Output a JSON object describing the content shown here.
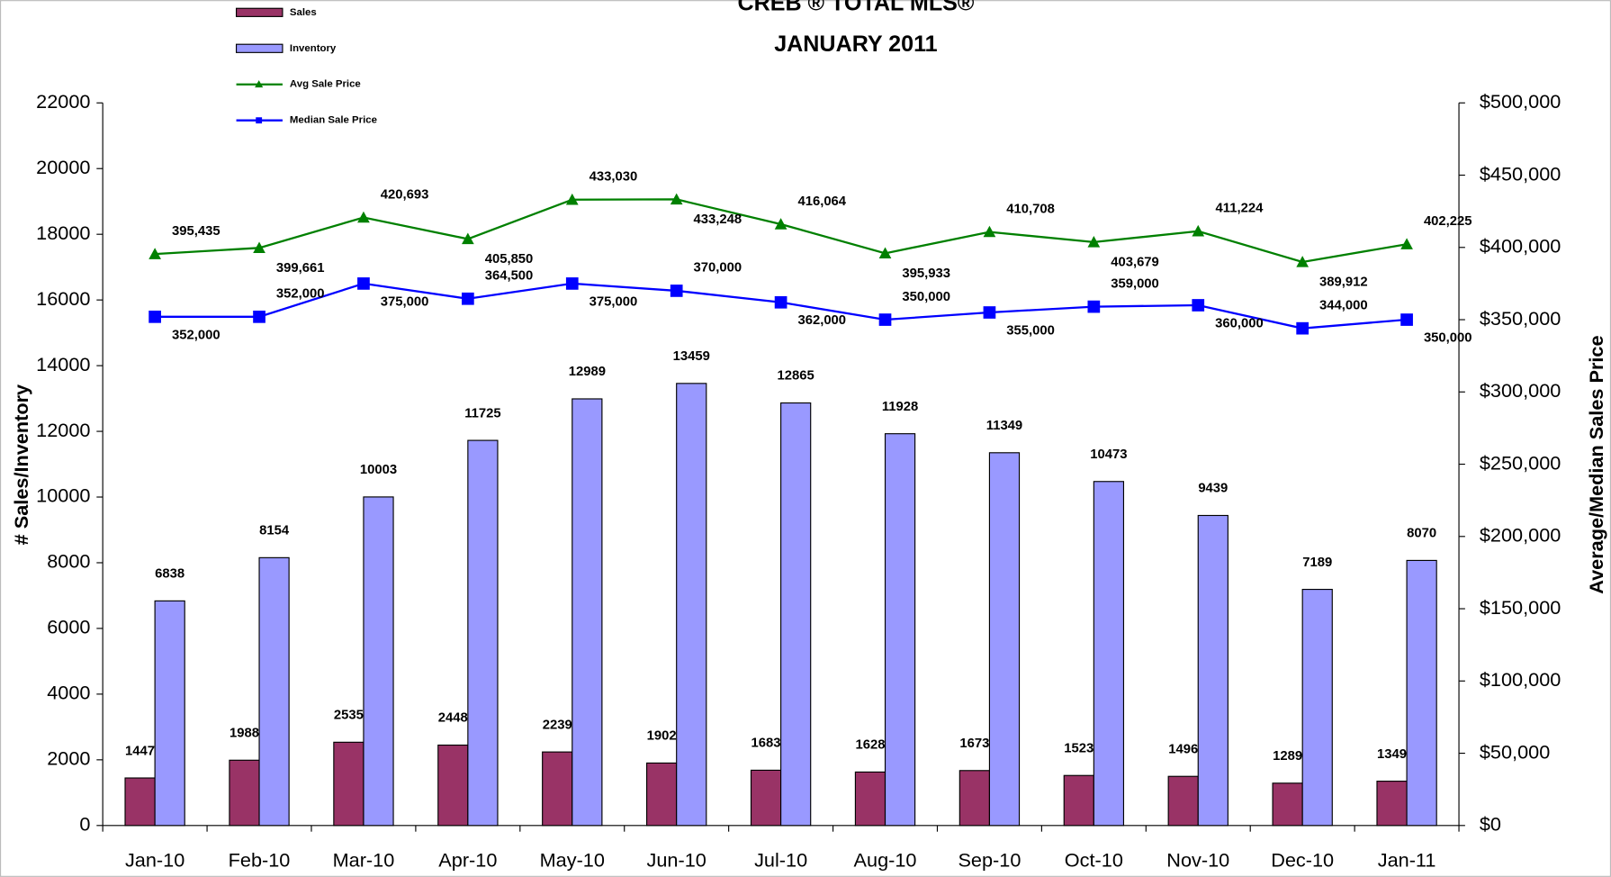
{
  "chart_data": {
    "type": "bar-line",
    "title": "CREB ® TOTAL MLS®",
    "subtitle": "JANUARY 2011",
    "ylabel": "# Sales/Inventory",
    "y2label": "Average/Median Sales Price",
    "categories": [
      "Jan-10",
      "Feb-10",
      "Mar-10",
      "Apr-10",
      "May-10",
      "Jun-10",
      "Jul-10",
      "Aug-10",
      "Sep-10",
      "Oct-10",
      "Nov-10",
      "Dec-10",
      "Jan-11"
    ],
    "series": [
      {
        "name": "Sales",
        "type": "bar",
        "color": "#993366",
        "values": [
          1447,
          1988,
          2535,
          2448,
          2239,
          1902,
          1683,
          1628,
          1673,
          1523,
          1496,
          1289,
          1349
        ]
      },
      {
        "name": "Inventory",
        "type": "bar",
        "color": "#9999ff",
        "values": [
          6838,
          8154,
          10003,
          11725,
          12989,
          13459,
          12865,
          11928,
          11349,
          10473,
          9439,
          7189,
          8070
        ]
      },
      {
        "name": "Avg Sale Price",
        "type": "line",
        "axis": "y2",
        "marker": "triangle",
        "color": "#008000",
        "values": [
          395435,
          399661,
          420693,
          405850,
          433030,
          433248,
          416064,
          395933,
          410708,
          403679,
          411224,
          389912,
          402225
        ],
        "value_labels": [
          "395,435",
          "399,661",
          "420,693",
          "405,850",
          "433,030",
          "433,248",
          "416,064",
          "395,933",
          "410,708",
          "403,679",
          "411,224",
          "389,912",
          "402,225"
        ]
      },
      {
        "name": "Median Sale Price",
        "type": "line",
        "axis": "y2",
        "marker": "square",
        "color": "#0000ff",
        "values": [
          352000,
          352000,
          375000,
          364500,
          375000,
          370000,
          362000,
          350000,
          355000,
          359000,
          360000,
          344000,
          350000
        ],
        "value_labels": [
          "352,000",
          "352,000",
          "375,000",
          "364,500",
          "375,000",
          "370,000",
          "362,000",
          "350,000",
          "355,000",
          "359,000",
          "360,000",
          "344,000",
          "350,000"
        ]
      }
    ],
    "ylim": [
      0,
      22000
    ],
    "yticks": [
      0,
      2000,
      4000,
      6000,
      8000,
      10000,
      12000,
      14000,
      16000,
      18000,
      20000,
      22000
    ],
    "y2lim": [
      0,
      500000
    ],
    "y2ticks": [
      {
        "value": 0,
        "label": "$0"
      },
      {
        "value": 50000,
        "label": "$50,000"
      },
      {
        "value": 100000,
        "label": "$100,000"
      },
      {
        "value": 150000,
        "label": "$150,000"
      },
      {
        "value": 200000,
        "label": "$200,000"
      },
      {
        "value": 250000,
        "label": "$250,000"
      },
      {
        "value": 300000,
        "label": "$300,000"
      },
      {
        "value": 350000,
        "label": "$350,000"
      },
      {
        "value": 400000,
        "label": "$400,000"
      },
      {
        "value": 450000,
        "label": "$450,000"
      },
      {
        "value": 500000,
        "label": "$500,000"
      }
    ],
    "legend": "top-left"
  }
}
